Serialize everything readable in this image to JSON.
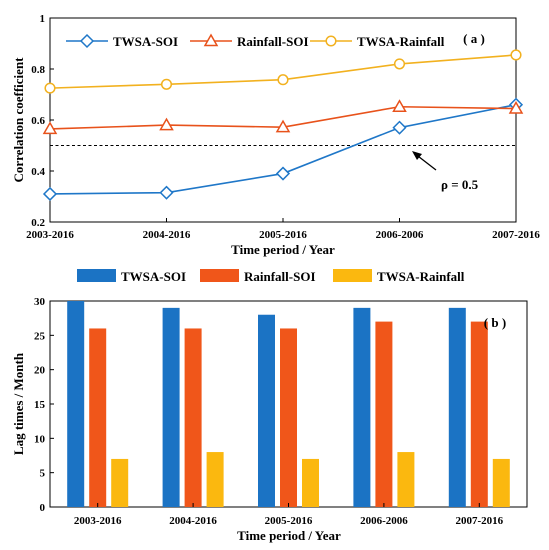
{
  "chart_data": [
    {
      "type": "line",
      "panel_label": "( a )",
      "categories": [
        "2003-2016",
        "2004-2016",
        "2005-2016",
        "2006-2006",
        "2007-2016"
      ],
      "series": [
        {
          "name": "TWSA-SOI",
          "color": "#1f77c8",
          "marker": "diamond",
          "values": [
            0.31,
            0.315,
            0.39,
            0.57,
            0.66
          ]
        },
        {
          "name": "Rainfall-SOI",
          "color": "#e8521b",
          "marker": "triangle",
          "values": [
            0.565,
            0.58,
            0.572,
            0.652,
            0.645
          ]
        },
        {
          "name": "TWSA-Rainfall",
          "color": "#f2b11f",
          "marker": "circle",
          "values": [
            0.725,
            0.74,
            0.758,
            0.82,
            0.855
          ]
        }
      ],
      "reference_line": {
        "y": 0.5,
        "style": "dashed",
        "label": "ρ = 0.5"
      },
      "xlabel": "Time period / Year",
      "ylabel": "Correlation coefficient",
      "ylim": [
        0.2,
        1
      ],
      "yticks": [
        "0.2",
        "0.4",
        "0.6",
        "0.8",
        "1"
      ],
      "legend_position": "top"
    },
    {
      "type": "bar",
      "panel_label": "( b )",
      "categories": [
        "2003-2016",
        "2004-2016",
        "2005-2016",
        "2006-2006",
        "2007-2016"
      ],
      "series": [
        {
          "name": "TWSA-SOI",
          "color": "#1b73c4",
          "values": [
            30,
            29,
            28,
            29,
            29
          ]
        },
        {
          "name": "Rainfall-SOI",
          "color": "#f0561a",
          "values": [
            26,
            26,
            26,
            27,
            27
          ]
        },
        {
          "name": "TWSA-Rainfall",
          "color": "#fbb80f",
          "values": [
            7,
            8,
            7,
            8,
            7
          ]
        }
      ],
      "xlabel": "Time period / Year",
      "ylabel": "Lag times / Month",
      "ylim": [
        0,
        30
      ],
      "yticks": [
        "0",
        "5",
        "10",
        "15",
        "20",
        "25",
        "30"
      ],
      "legend_position": "above"
    }
  ]
}
